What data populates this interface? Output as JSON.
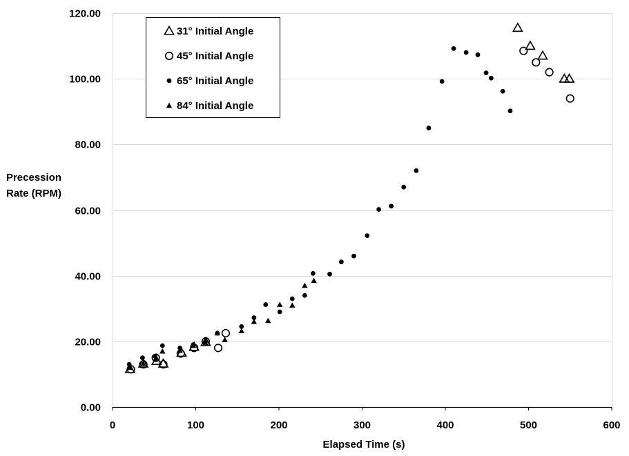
{
  "chart_data": {
    "type": "scatter",
    "title": "",
    "xlabel": "Elapsed Time (s)",
    "ylabel_lines": [
      "Precession",
      "Rate (RPM)"
    ],
    "xlim": [
      0,
      600
    ],
    "ylim": [
      0,
      120
    ],
    "xticks": [
      0,
      100,
      200,
      300,
      400,
      500,
      600
    ],
    "yticks": [
      0,
      20,
      40,
      60,
      80,
      100,
      120
    ],
    "xtick_labels": [
      "0",
      "100",
      "200",
      "300",
      "400",
      "500",
      "600"
    ],
    "ytick_labels": [
      "0.00",
      "20.00",
      "40.00",
      "60.00",
      "80.00",
      "100.00",
      "120.00"
    ],
    "grid": "horizontal",
    "legend_position": "top-left",
    "colors": {
      "marker": "#000000",
      "grid": "#d9d9d9",
      "axis": "#000000"
    },
    "series": [
      {
        "name": "31° Initial Angle",
        "marker": "open-triangle",
        "points": [
          [
            21,
            11.5
          ],
          [
            37,
            13.2
          ],
          [
            53,
            14.0
          ],
          [
            61,
            13.2
          ],
          [
            83,
            16.5
          ],
          [
            98,
            18.3
          ],
          [
            112,
            19.8
          ],
          [
            487,
            115.5
          ],
          [
            502,
            110
          ],
          [
            517,
            107
          ],
          [
            543,
            100
          ],
          [
            549,
            100
          ]
        ]
      },
      {
        "name": "45° Initial Angle",
        "marker": "open-circle",
        "points": [
          [
            22,
            11.5
          ],
          [
            37,
            13.0
          ],
          [
            52,
            15.0
          ],
          [
            61,
            13.0
          ],
          [
            82,
            16.3
          ],
          [
            98,
            18.0
          ],
          [
            112,
            20.0
          ],
          [
            127,
            18.0
          ],
          [
            136,
            22.5
          ],
          [
            494,
            108.5
          ],
          [
            509,
            105
          ],
          [
            525,
            102
          ],
          [
            550,
            94
          ]
        ]
      },
      {
        "name": "65° Initial Angle",
        "marker": "filled-circle",
        "points": [
          [
            20,
            13.0
          ],
          [
            36,
            15.0
          ],
          [
            51,
            15.5
          ],
          [
            60,
            18.7
          ],
          [
            81,
            18.0
          ],
          [
            97,
            19.0
          ],
          [
            112,
            20.0
          ],
          [
            126,
            22.5
          ],
          [
            155,
            24.5
          ],
          [
            170,
            27.2
          ],
          [
            184,
            31.2
          ],
          [
            201,
            29.0
          ],
          [
            216,
            33.0
          ],
          [
            231,
            34.0
          ],
          [
            241,
            40.7
          ],
          [
            261,
            40.5
          ],
          [
            275,
            44.2
          ],
          [
            290,
            46.0
          ],
          [
            306,
            52.2
          ],
          [
            320,
            60.2
          ],
          [
            335,
            61.2
          ],
          [
            350,
            67.0
          ],
          [
            365,
            72.0
          ],
          [
            380,
            85.0
          ],
          [
            396,
            99.2
          ],
          [
            410,
            109.2
          ],
          [
            425,
            108.0
          ],
          [
            439,
            107.3
          ],
          [
            449,
            101.8
          ],
          [
            455,
            100.2
          ],
          [
            469,
            96.2
          ],
          [
            478,
            90.2
          ]
        ]
      },
      {
        "name": "84° Initial Angle",
        "marker": "filled-triangle",
        "points": [
          [
            21,
            12.0
          ],
          [
            37,
            13.2
          ],
          [
            52,
            14.8
          ],
          [
            60,
            17.0
          ],
          [
            81,
            17.2
          ],
          [
            97,
            18.7
          ],
          [
            111,
            19.8
          ],
          [
            126,
            22.5
          ],
          [
            135,
            20.5
          ],
          [
            155,
            23.2
          ],
          [
            170,
            26.0
          ],
          [
            187,
            26.3
          ],
          [
            201,
            31.2
          ],
          [
            216,
            31.0
          ],
          [
            231,
            37.0
          ],
          [
            242,
            38.5
          ]
        ]
      }
    ]
  }
}
